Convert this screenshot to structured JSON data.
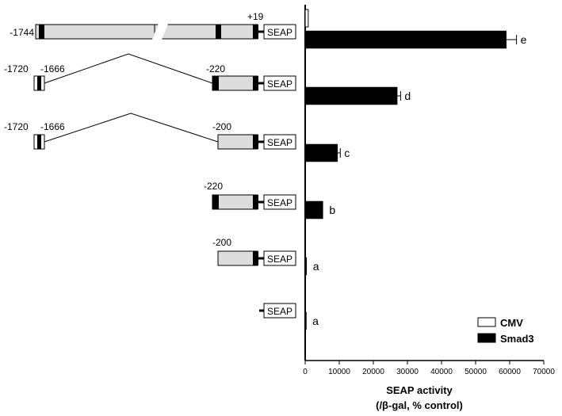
{
  "chart_data": {
    "type": "bar",
    "orientation": "horizontal",
    "xlabel": "SEAP activity",
    "xlabel_sub": "(/β-gal, % control)",
    "xlim": [
      0,
      70000
    ],
    "xticks": [
      "0",
      "10000",
      "20000",
      "30000",
      "40000",
      "50000",
      "60000",
      "70000"
    ],
    "legend_position": "bottom-right",
    "series": [
      {
        "name": "CMV",
        "color": "#ffffff",
        "values": [
          900,
          0,
          0,
          0,
          0,
          0
        ]
      },
      {
        "name": "Smad3",
        "color": "#000000",
        "values": [
          59000,
          27000,
          9500,
          5200,
          400,
          250
        ],
        "errors": [
          3000,
          1000,
          800,
          0,
          0,
          0
        ]
      }
    ],
    "significance": [
      "e",
      "d",
      "c",
      "b",
      "a",
      "a"
    ],
    "constructs": [
      {
        "reporter": "SEAP",
        "labels": [
          "-1744",
          "+19"
        ]
      },
      {
        "reporter": "SEAP",
        "labels": [
          "-1720",
          "-1666",
          "-220"
        ]
      },
      {
        "reporter": "SEAP",
        "labels": [
          "-1720",
          "-1666",
          "-200"
        ]
      },
      {
        "reporter": "SEAP",
        "labels": [
          "-220"
        ]
      },
      {
        "reporter": "SEAP",
        "labels": [
          "-200"
        ]
      },
      {
        "reporter": "SEAP",
        "labels": []
      }
    ]
  }
}
